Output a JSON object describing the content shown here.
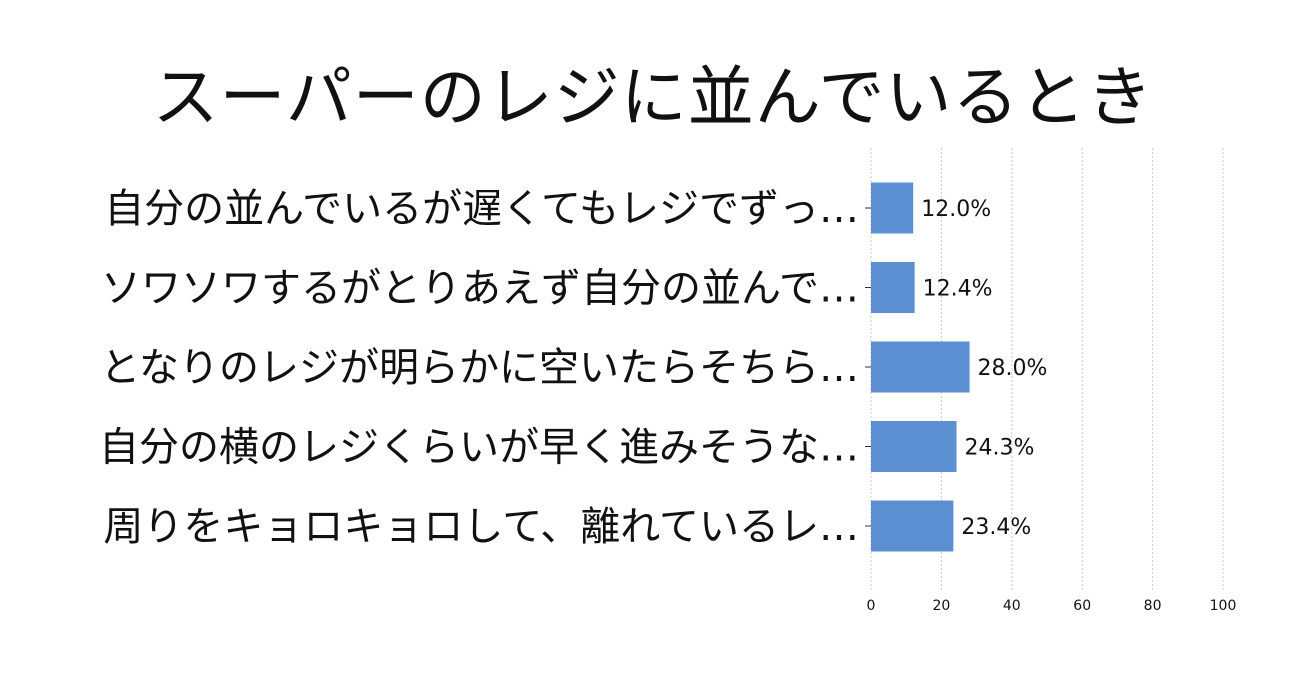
{
  "chart_data": {
    "type": "bar",
    "orientation": "horizontal",
    "title": "スーパーのレジに並んでいるとき",
    "categories": [
      "自分の並んでいるが遅くてもレジでずっ…",
      "ソワソワするがとりあえず自分の並んで…",
      "となりのレジが明らかに空いたらそちら…",
      "自分の横のレジくらいが早く進みそうな…",
      "周りをキョロキョロして、離れているレ…"
    ],
    "values": [
      12.0,
      12.4,
      28.0,
      24.3,
      23.4
    ],
    "value_labels": [
      "12.0%",
      "12.4%",
      "28.0%",
      "24.3%",
      "23.4%"
    ],
    "xlim": [
      0,
      100
    ],
    "xticks": [
      0,
      20,
      40,
      60,
      80,
      100
    ],
    "grid": true,
    "bar_color": "#5b8fd1"
  }
}
